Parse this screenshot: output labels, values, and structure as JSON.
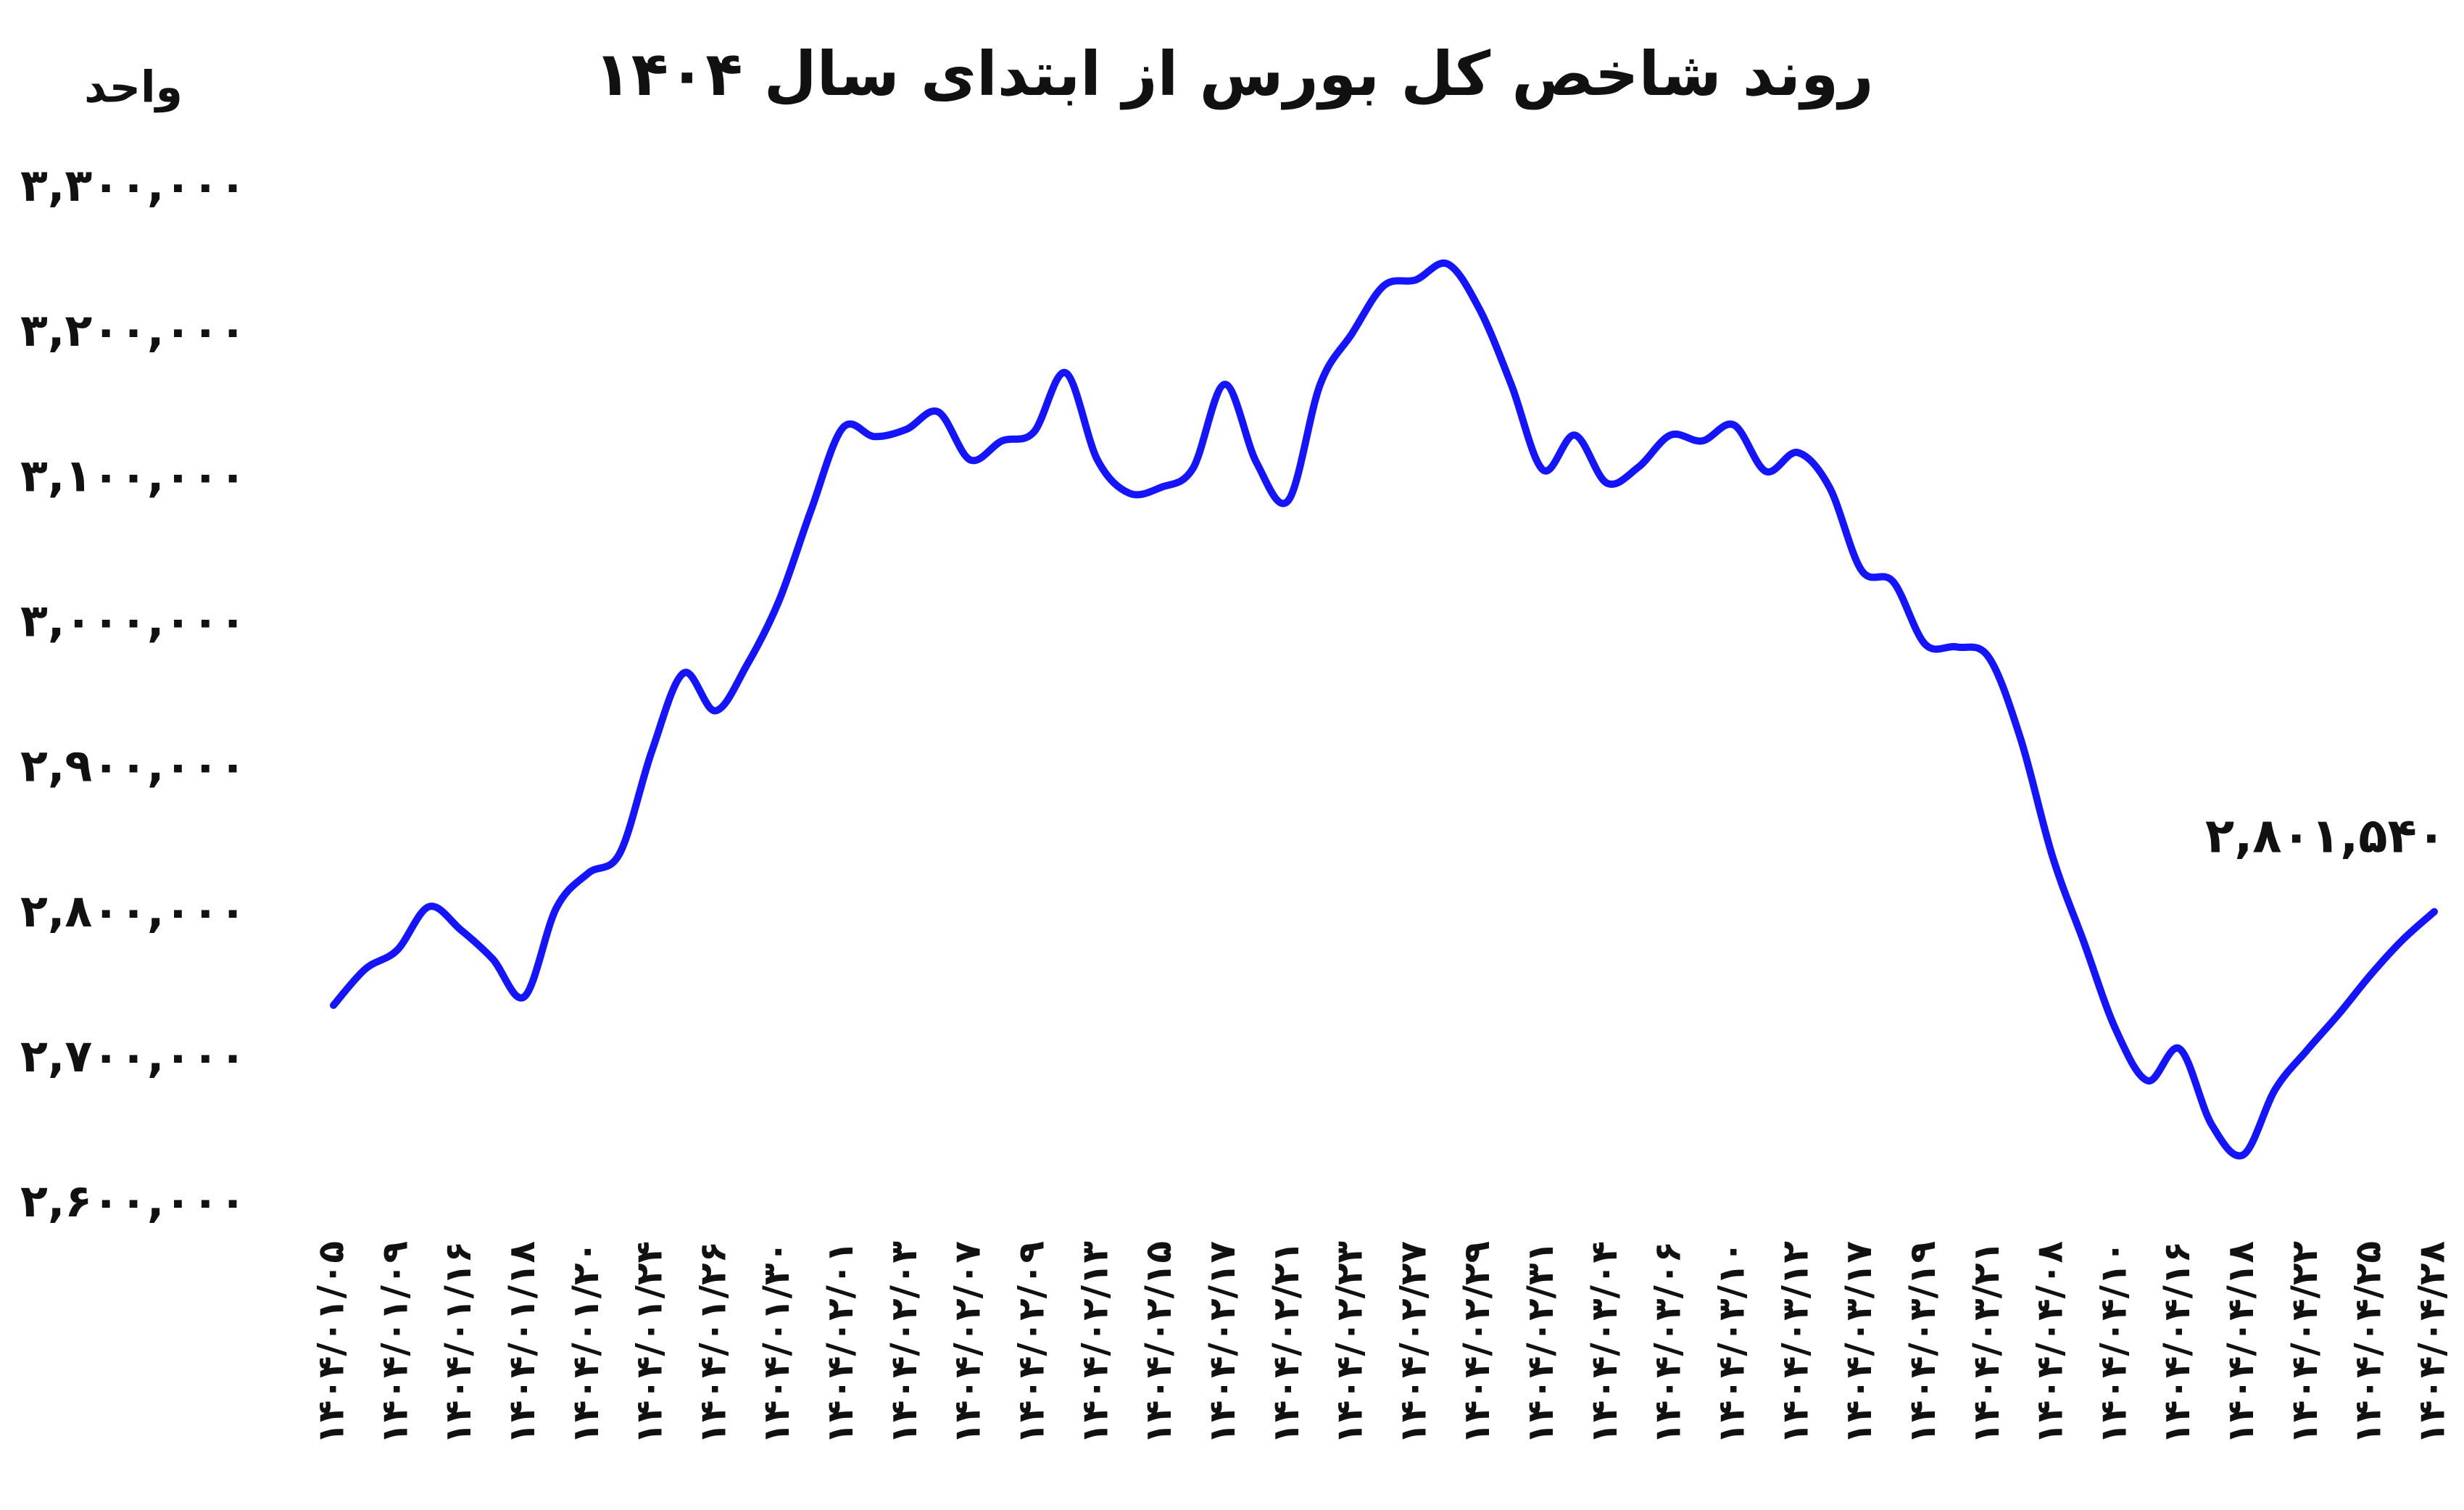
{
  "chart_data": {
    "type": "line",
    "title": "روند شاخص کل بورس از ابتدای سال ۱۴۰۴",
    "y_axis_label": "واحد",
    "categories": [
      "۱۴۰۴/۰۱/۰۵",
      null,
      "۱۴۰۴/۰۱/۰۹",
      null,
      "۱۴۰۴/۰۱/۱۶",
      null,
      "۱۴۰۴/۰۱/۱۸",
      null,
      "۱۴۰۴/۰۱/۲۰",
      null,
      "۱۴۰۴/۰۱/۲۴",
      null,
      "۱۴۰۴/۰۱/۲۶",
      null,
      "۱۴۰۴/۰۱/۳۰",
      null,
      "۱۴۰۴/۰۲/۰۱",
      null,
      "۱۴۰۴/۰۲/۰۳",
      null,
      "۱۴۰۴/۰۲/۰۷",
      null,
      "۱۴۰۴/۰۲/۰۹",
      null,
      "۱۴۰۴/۰۲/۱۳",
      null,
      "۱۴۰۴/۰۲/۱۵",
      null,
      "۱۴۰۴/۰۲/۱۷",
      null,
      "۱۴۰۴/۰۲/۲۱",
      null,
      "۱۴۰۴/۰۲/۲۳",
      null,
      "۱۴۰۴/۰۲/۲۷",
      null,
      "۱۴۰۴/۰۲/۲۹",
      null,
      "۱۴۰۴/۰۲/۳۱",
      null,
      "۱۴۰۴/۰۳/۰۴",
      null,
      "۱۴۰۴/۰۳/۰۶",
      null,
      "۱۴۰۴/۰۳/۱۰",
      null,
      "۱۴۰۴/۰۳/۱۲",
      null,
      "۱۴۰۴/۰۳/۱۷",
      null,
      "۱۴۰۴/۰۳/۱۹",
      null,
      "۱۴۰۴/۰۳/۲۱",
      null,
      "۱۴۰۴/۰۴/۰۸",
      null,
      "۱۴۰۴/۰۴/۱۰",
      null,
      "۱۴۰۴/۰۴/۱۶",
      null,
      "۱۴۰۴/۰۴/۱۸",
      null,
      "۱۴۰۴/۰۴/۲۲",
      null,
      "۱۴۰۴/۰۴/۲۵",
      null,
      "۱۴۰۴/۰۴/۲۸"
    ],
    "values": [
      2737000,
      2762000,
      2775000,
      2805000,
      2789000,
      2769000,
      2743000,
      2804000,
      2828000,
      2842000,
      2912000,
      2966000,
      2940000,
      2972000,
      3016000,
      3078000,
      3135000,
      3129000,
      3134000,
      3146000,
      3113000,
      3126000,
      3132000,
      3173000,
      3113000,
      3090000,
      3094000,
      3107000,
      3165000,
      3111000,
      3085000,
      3165000,
      3200000,
      3233000,
      3237000,
      3248000,
      3217000,
      3165000,
      3106000,
      3130000,
      3097000,
      3108000,
      3130000,
      3126000,
      3137000,
      3105000,
      3118000,
      3094000,
      3037000,
      3029000,
      2986000,
      2984000,
      2977000,
      2921000,
      2840000,
      2780000,
      2720000,
      2685000,
      2707000,
      2655000,
      2634000,
      2679000,
      2706000,
      2731000,
      2758000,
      2782000,
      2801540
    ],
    "value_labels": [
      null,
      null,
      null,
      null,
      null,
      null,
      null,
      null,
      null,
      null,
      null,
      null,
      null,
      null,
      null,
      null,
      null,
      null,
      null,
      null,
      null,
      null,
      null,
      null,
      null,
      null,
      null,
      null,
      null,
      null,
      null,
      null,
      null,
      null,
      null,
      null,
      null,
      null,
      null,
      null,
      null,
      null,
      null,
      null,
      null,
      null,
      null,
      null,
      null,
      null,
      null,
      null,
      null,
      null,
      null,
      null,
      null,
      null,
      null,
      null,
      null,
      null,
      null,
      null,
      null,
      null,
      "۲,۸۰۱,۵۴۰"
    ],
    "color": "#1414ff",
    "ylim": [
      2600000,
      3300000
    ],
    "yticks": [
      {
        "value": 2600000,
        "label": "۲,۶۰۰,۰۰۰"
      },
      {
        "value": 2700000,
        "label": "۲,۷۰۰,۰۰۰"
      },
      {
        "value": 2800000,
        "label": "۲,۸۰۰,۰۰۰"
      },
      {
        "value": 2900000,
        "label": "۲,۹۰۰,۰۰۰"
      },
      {
        "value": 3000000,
        "label": "۳,۰۰۰,۰۰۰"
      },
      {
        "value": 3100000,
        "label": "۳,۱۰۰,۰۰۰"
      },
      {
        "value": 3200000,
        "label": "۳,۲۰۰,۰۰۰"
      },
      {
        "value": 3300000,
        "label": "۳,۳۰۰,۰۰۰"
      }
    ],
    "grid": false
  }
}
